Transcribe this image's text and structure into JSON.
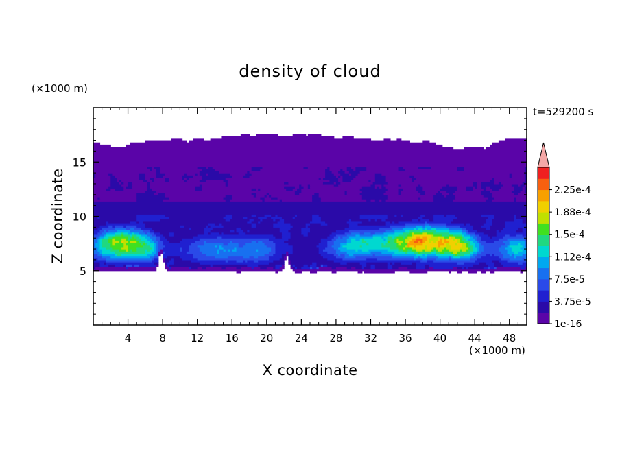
{
  "chart_data": {
    "type": "heatmap",
    "title": "density of cloud",
    "xlabel": "X coordinate",
    "ylabel": "Z coordinate",
    "x_unit": "(×1000 m)",
    "y_unit": "(×1000 m)",
    "time_label": "t=529200 s",
    "xlim": [
      0,
      50
    ],
    "ylim": [
      0,
      20
    ],
    "x_ticks": [
      4,
      8,
      12,
      16,
      20,
      24,
      28,
      32,
      36,
      40,
      44,
      48
    ],
    "x_tick_labels": [
      "4",
      "8",
      "12",
      "16",
      "20",
      "24",
      "28",
      "32",
      "36",
      "40",
      "44",
      "48"
    ],
    "y_ticks": [
      5,
      10,
      15
    ],
    "y_tick_labels": [
      "5",
      "10",
      "15"
    ],
    "colorbar": {
      "levels": [
        1e-16,
        1.875e-05,
        3.75e-05,
        5.625e-05,
        7.5e-05,
        9.375e-05,
        0.0001125,
        0.00013125,
        0.00015,
        0.00016875,
        0.0001875,
        0.00020625,
        0.000225,
        0.00024375
      ],
      "labels": [
        "1e-16",
        "3.75e-5",
        "7.5e-5",
        "1.12e-4",
        "1.5e-4",
        "1.88e-4",
        "2.25e-4"
      ],
      "colors": [
        "#5a04a8",
        "#2a0aa8",
        "#2020d0",
        "#2a4ae8",
        "#1870f0",
        "#00a8f0",
        "#00d8d0",
        "#20d880",
        "#40e020",
        "#c0e000",
        "#f0d000",
        "#f8a000",
        "#f86010",
        "#f02020"
      ],
      "extend_color": "#f4a7a6"
    }
  }
}
